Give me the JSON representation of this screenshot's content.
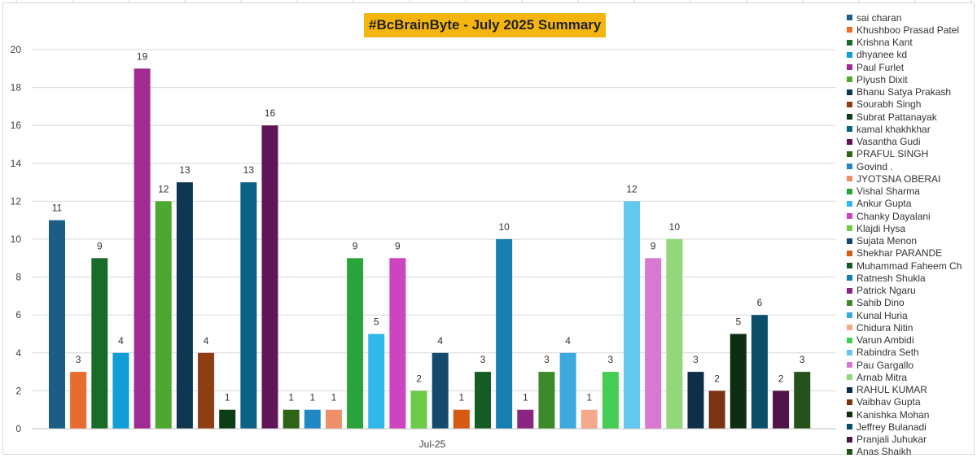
{
  "chart_data": {
    "type": "bar",
    "title": "#BcBrainByte - July 2025 Summary",
    "category": "Jul-25",
    "xlabel": "",
    "ylabel": "",
    "ylim": [
      0,
      20
    ],
    "yticks": [
      0,
      2,
      4,
      6,
      8,
      10,
      12,
      14,
      16,
      18,
      20
    ],
    "grid": true,
    "legend_position": "right",
    "title_background": "#f5b50f",
    "series": [
      {
        "name": "sai charan",
        "value": 11,
        "color": "#1a5e85"
      },
      {
        "name": "Khushboo Prasad Patel",
        "value": 3,
        "color": "#e86c2c"
      },
      {
        "name": "Krishna Kant",
        "value": 9,
        "color": "#1a6b2a"
      },
      {
        "name": "dhyanee kd",
        "value": 4,
        "color": "#0f9ed5"
      },
      {
        "name": "Paul Furlet",
        "value": 19,
        "color": "#a02b93"
      },
      {
        "name": "Piyush Dixit",
        "value": 12,
        "color": "#4ea72e"
      },
      {
        "name": "Bhanu Satya Prakash",
        "value": 13,
        "color": "#0e3650"
      },
      {
        "name": "Sourabh Singh",
        "value": 4,
        "color": "#8f3e14"
      },
      {
        "name": "Subrat Pattanayak",
        "value": 1,
        "color": "#0d3d14"
      },
      {
        "name": "kamal khakhkhar",
        "value": 13,
        "color": "#0a6285"
      },
      {
        "name": "Vasantha Gudi",
        "value": 16,
        "color": "#601558"
      },
      {
        "name": "PRAFUL SINGH",
        "value": 1,
        "color": "#2e6318"
      },
      {
        "name": "Govind .",
        "value": 1,
        "color": "#1f88c4"
      },
      {
        "name": "JYOTSNA OBERAI",
        "value": 1,
        "color": "#f0906a"
      },
      {
        "name": "Vishal Sharma",
        "value": 9,
        "color": "#2aa33a"
      },
      {
        "name": "Ankur Gupta",
        "value": 5,
        "color": "#2eb8ec"
      },
      {
        "name": "Chanky Dayalani",
        "value": 9,
        "color": "#cc44c0"
      },
      {
        "name": "Klajdi Hysa",
        "value": 2,
        "color": "#6ccc4a"
      },
      {
        "name": "Sujata Menon",
        "value": 4,
        "color": "#154a6e"
      },
      {
        "name": "Shekhar PARANDE",
        "value": 1,
        "color": "#d65a12"
      },
      {
        "name": "Muhammad Faheem Ch",
        "value": 3,
        "color": "#155c24"
      },
      {
        "name": "Ratnesh Shukla",
        "value": 10,
        "color": "#147fb0"
      },
      {
        "name": "Patrick Ngaru",
        "value": 1,
        "color": "#8a2680"
      },
      {
        "name": "Sahib Dino",
        "value": 3,
        "color": "#3e8a2a"
      },
      {
        "name": "Kunal Huria",
        "value": 4,
        "color": "#3ba9dc"
      },
      {
        "name": "Chidura Nitin",
        "value": 1,
        "color": "#f4a98a"
      },
      {
        "name": "Varun Ambidi",
        "value": 3,
        "color": "#44cc55"
      },
      {
        "name": "Rabindra Seth",
        "value": 12,
        "color": "#62c8f0"
      },
      {
        "name": "Pau Gargallo",
        "value": 9,
        "color": "#d978d0"
      },
      {
        "name": "Arnab Mitra",
        "value": 10,
        "color": "#92d87a"
      },
      {
        "name": "RAHUL KUMAR",
        "value": 3,
        "color": "#0f2e48"
      },
      {
        "name": "Vaibhav Gupta",
        "value": 2,
        "color": "#7a3412"
      },
      {
        "name": "Kanishka Mohan",
        "value": 5,
        "color": "#0d2e10"
      },
      {
        "name": "Jeffrey Bulanadi",
        "value": 6,
        "color": "#0a4f6a"
      },
      {
        "name": "Pranjali Juhukar",
        "value": 2,
        "color": "#4f1448"
      },
      {
        "name": "Anas Shaikh",
        "value": 3,
        "color": "#24521a"
      }
    ]
  }
}
